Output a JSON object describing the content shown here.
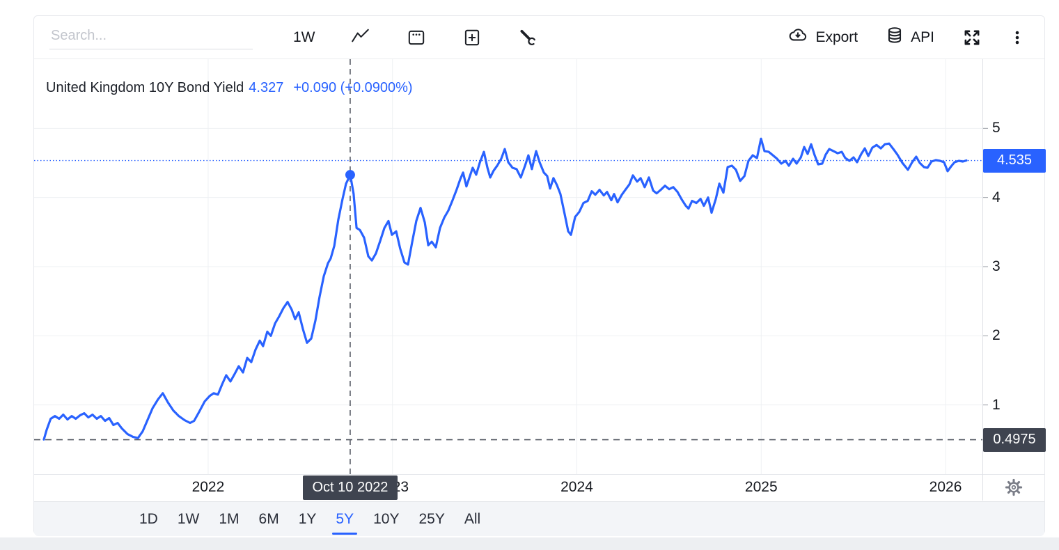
{
  "toolbar": {
    "search_placeholder": "Search...",
    "interval": "1W",
    "export_label": "Export",
    "api_label": "API"
  },
  "legend": {
    "title": "United Kingdom 10Y Bond Yield",
    "value": "4.327",
    "change": "+0.090 (+0.0900%)"
  },
  "price_scale": {
    "current_label": "4.535",
    "crosshair_label": "0.4975"
  },
  "xaxis": {
    "crosshair_date": "Oct 10 2022"
  },
  "ranges": {
    "items": [
      "1D",
      "1W",
      "1M",
      "6M",
      "1Y",
      "5Y",
      "10Y",
      "25Y",
      "All"
    ],
    "selected": "5Y"
  },
  "colors": {
    "accent": "#2962FF",
    "line": "#2962FF",
    "current_label_bg": "#2962FF",
    "crosshair_label_bg": "#3F4450",
    "grid": "#eef0f3",
    "crosshair": "#565a64"
  },
  "chart_data": {
    "type": "line",
    "title": "United Kingdom 10Y Bond Yield (%)",
    "legend_position": "top-left",
    "grid": true,
    "x_axis": {
      "ticks": [
        2022,
        2023,
        2024,
        2025,
        2026
      ],
      "range": [
        2021.056,
        2026.2
      ],
      "label_format": "year"
    },
    "y_axis": {
      "ticks": [
        1,
        2,
        3,
        4,
        5
      ],
      "range": [
        0,
        6
      ],
      "side": "right"
    },
    "current_price": 4.535,
    "crosshair": {
      "date": "Oct 10 2022",
      "x": 2022.7705,
      "price": 0.4975,
      "point_value": 4.327
    },
    "series": [
      {
        "name": "United Kingdom 10Y Bond Yield",
        "color": "#2962FF",
        "points": [
          [
            2021.109,
            0.5
          ],
          [
            2021.124,
            0.64
          ],
          [
            2021.146,
            0.8
          ],
          [
            2021.169,
            0.84
          ],
          [
            2021.192,
            0.8
          ],
          [
            2021.214,
            0.86
          ],
          [
            2021.237,
            0.79
          ],
          [
            2021.26,
            0.84
          ],
          [
            2021.282,
            0.8
          ],
          [
            2021.305,
            0.85
          ],
          [
            2021.328,
            0.88
          ],
          [
            2021.35,
            0.82
          ],
          [
            2021.373,
            0.86
          ],
          [
            2021.396,
            0.8
          ],
          [
            2021.418,
            0.84
          ],
          [
            2021.441,
            0.77
          ],
          [
            2021.463,
            0.81
          ],
          [
            2021.486,
            0.71
          ],
          [
            2021.509,
            0.74
          ],
          [
            2021.532,
            0.66
          ],
          [
            2021.562,
            0.58
          ],
          [
            2021.592,
            0.54
          ],
          [
            2021.619,
            0.52
          ],
          [
            2021.645,
            0.62
          ],
          [
            2021.671,
            0.78
          ],
          [
            2021.698,
            0.95
          ],
          [
            2021.728,
            1.08
          ],
          [
            2021.754,
            1.17
          ],
          [
            2021.781,
            1.04
          ],
          [
            2021.811,
            0.92
          ],
          [
            2021.841,
            0.84
          ],
          [
            2021.872,
            0.78
          ],
          [
            2021.902,
            0.74
          ],
          [
            2021.924,
            0.77
          ],
          [
            2021.951,
            0.9
          ],
          [
            2021.981,
            1.05
          ],
          [
            2022.008,
            1.13
          ],
          [
            2022.03,
            1.17
          ],
          [
            2022.053,
            1.15
          ],
          [
            2022.076,
            1.3
          ],
          [
            2022.098,
            1.43
          ],
          [
            2022.121,
            1.34
          ],
          [
            2022.144,
            1.45
          ],
          [
            2022.166,
            1.56
          ],
          [
            2022.189,
            1.47
          ],
          [
            2022.212,
            1.68
          ],
          [
            2022.234,
            1.62
          ],
          [
            2022.257,
            1.8
          ],
          [
            2022.28,
            1.93
          ],
          [
            2022.298,
            1.85
          ],
          [
            2022.321,
            2.06
          ],
          [
            2022.34,
            2.0
          ],
          [
            2022.363,
            2.18
          ],
          [
            2022.385,
            2.28
          ],
          [
            2022.408,
            2.4
          ],
          [
            2022.431,
            2.49
          ],
          [
            2022.453,
            2.38
          ],
          [
            2022.472,
            2.24
          ],
          [
            2022.491,
            2.34
          ],
          [
            2022.514,
            2.1
          ],
          [
            2022.536,
            1.9
          ],
          [
            2022.559,
            1.96
          ],
          [
            2022.582,
            2.22
          ],
          [
            2022.604,
            2.56
          ],
          [
            2022.627,
            2.86
          ],
          [
            2022.65,
            3.05
          ],
          [
            2022.665,
            3.12
          ],
          [
            2022.684,
            3.3
          ],
          [
            2022.706,
            3.68
          ],
          [
            2022.729,
            3.98
          ],
          [
            2022.748,
            4.2
          ],
          [
            2022.771,
            4.327
          ],
          [
            2022.789,
            4.05
          ],
          [
            2022.805,
            3.56
          ],
          [
            2022.823,
            3.53
          ],
          [
            2022.846,
            3.42
          ],
          [
            2022.869,
            3.15
          ],
          [
            2022.888,
            3.09
          ],
          [
            2022.91,
            3.19
          ],
          [
            2022.933,
            3.37
          ],
          [
            2022.956,
            3.56
          ],
          [
            2022.978,
            3.66
          ],
          [
            2022.997,
            3.46
          ],
          [
            2023.02,
            3.51
          ],
          [
            2023.042,
            3.26
          ],
          [
            2023.065,
            3.06
          ],
          [
            2023.084,
            3.03
          ],
          [
            2023.107,
            3.36
          ],
          [
            2023.129,
            3.66
          ],
          [
            2023.152,
            3.85
          ],
          [
            2023.175,
            3.64
          ],
          [
            2023.194,
            3.31
          ],
          [
            2023.213,
            3.36
          ],
          [
            2023.235,
            3.28
          ],
          [
            2023.258,
            3.56
          ],
          [
            2023.281,
            3.71
          ],
          [
            2023.303,
            3.81
          ],
          [
            2023.326,
            3.96
          ],
          [
            2023.349,
            4.12
          ],
          [
            2023.367,
            4.26
          ],
          [
            2023.383,
            4.36
          ],
          [
            2023.401,
            4.16
          ],
          [
            2023.42,
            4.31
          ],
          [
            2023.435,
            4.43
          ],
          [
            2023.454,
            4.33
          ],
          [
            2023.473,
            4.5
          ],
          [
            2023.496,
            4.66
          ],
          [
            2023.515,
            4.43
          ],
          [
            2023.53,
            4.29
          ],
          [
            2023.549,
            4.39
          ],
          [
            2023.568,
            4.46
          ],
          [
            2023.59,
            4.56
          ],
          [
            2023.609,
            4.7
          ],
          [
            2023.628,
            4.51
          ],
          [
            2023.651,
            4.43
          ],
          [
            2023.673,
            4.41
          ],
          [
            2023.696,
            4.29
          ],
          [
            2023.719,
            4.46
          ],
          [
            2023.737,
            4.61
          ],
          [
            2023.756,
            4.41
          ],
          [
            2023.779,
            4.67
          ],
          [
            2023.798,
            4.51
          ],
          [
            2023.821,
            4.36
          ],
          [
            2023.839,
            4.31
          ],
          [
            2023.855,
            4.13
          ],
          [
            2023.873,
            4.28
          ],
          [
            2023.892,
            4.18
          ],
          [
            2023.911,
            4.05
          ],
          [
            2023.934,
            3.76
          ],
          [
            2023.953,
            3.51
          ],
          [
            2023.968,
            3.46
          ],
          [
            2023.991,
            3.72
          ],
          [
            2024.013,
            3.79
          ],
          [
            2024.036,
            3.92
          ],
          [
            2024.059,
            3.95
          ],
          [
            2024.081,
            4.09
          ],
          [
            2024.1,
            4.04
          ],
          [
            2024.123,
            4.11
          ],
          [
            2024.146,
            4.03
          ],
          [
            2024.164,
            4.08
          ],
          [
            2024.187,
            3.96
          ],
          [
            2024.202,
            4.05
          ],
          [
            2024.221,
            3.93
          ],
          [
            2024.244,
            4.04
          ],
          [
            2024.266,
            4.12
          ],
          [
            2024.285,
            4.19
          ],
          [
            2024.304,
            4.32
          ],
          [
            2024.327,
            4.23
          ],
          [
            2024.346,
            4.28
          ],
          [
            2024.368,
            4.15
          ],
          [
            2024.391,
            4.29
          ],
          [
            2024.414,
            4.1
          ],
          [
            2024.433,
            4.06
          ],
          [
            2024.455,
            4.11
          ],
          [
            2024.478,
            4.17
          ],
          [
            2024.501,
            4.12
          ],
          [
            2024.523,
            4.15
          ],
          [
            2024.546,
            4.08
          ],
          [
            2024.569,
            3.97
          ],
          [
            2024.591,
            3.88
          ],
          [
            2024.606,
            3.84
          ],
          [
            2024.625,
            3.95
          ],
          [
            2024.648,
            3.92
          ],
          [
            2024.671,
            3.98
          ],
          [
            2024.689,
            3.88
          ],
          [
            2024.712,
            4.0
          ],
          [
            2024.731,
            3.78
          ],
          [
            2024.754,
            3.98
          ],
          [
            2024.773,
            4.2
          ],
          [
            2024.795,
            4.07
          ],
          [
            2024.818,
            4.44
          ],
          [
            2024.841,
            4.46
          ],
          [
            2024.863,
            4.4
          ],
          [
            2024.886,
            4.24
          ],
          [
            2024.909,
            4.31
          ],
          [
            2024.931,
            4.53
          ],
          [
            2024.954,
            4.61
          ],
          [
            2024.977,
            4.57
          ],
          [
            2024.999,
            4.85
          ],
          [
            2025.018,
            4.67
          ],
          [
            2025.041,
            4.66
          ],
          [
            2025.064,
            4.61
          ],
          [
            2025.086,
            4.56
          ],
          [
            2025.109,
            4.49
          ],
          [
            2025.132,
            4.53
          ],
          [
            2025.15,
            4.46
          ],
          [
            2025.173,
            4.56
          ],
          [
            2025.192,
            4.49
          ],
          [
            2025.215,
            4.58
          ],
          [
            2025.233,
            4.73
          ],
          [
            2025.252,
            4.63
          ],
          [
            2025.271,
            4.77
          ],
          [
            2025.29,
            4.61
          ],
          [
            2025.309,
            4.48
          ],
          [
            2025.331,
            4.49
          ],
          [
            2025.35,
            4.62
          ],
          [
            2025.369,
            4.7
          ],
          [
            2025.392,
            4.67
          ],
          [
            2025.414,
            4.64
          ],
          [
            2025.437,
            4.66
          ],
          [
            2025.456,
            4.57
          ],
          [
            2025.479,
            4.53
          ],
          [
            2025.501,
            4.58
          ],
          [
            2025.52,
            4.51
          ],
          [
            2025.543,
            4.63
          ],
          [
            2025.562,
            4.71
          ],
          [
            2025.581,
            4.6
          ],
          [
            2025.603,
            4.72
          ],
          [
            2025.626,
            4.76
          ],
          [
            2025.649,
            4.71
          ],
          [
            2025.671,
            4.77
          ],
          [
            2025.694,
            4.78
          ],
          [
            2025.717,
            4.7
          ],
          [
            2025.739,
            4.62
          ],
          [
            2025.766,
            4.5
          ],
          [
            2025.796,
            4.4
          ],
          [
            2025.819,
            4.51
          ],
          [
            2025.841,
            4.59
          ],
          [
            2025.86,
            4.5
          ],
          [
            2025.883,
            4.44
          ],
          [
            2025.902,
            4.43
          ],
          [
            2025.924,
            4.52
          ],
          [
            2025.947,
            4.54
          ],
          [
            2025.97,
            4.53
          ],
          [
            2025.992,
            4.51
          ],
          [
            2026.011,
            4.38
          ],
          [
            2026.03,
            4.45
          ],
          [
            2026.049,
            4.51
          ],
          [
            2026.072,
            4.53
          ],
          [
            2026.094,
            4.52
          ],
          [
            2026.113,
            4.535
          ]
        ]
      }
    ]
  }
}
